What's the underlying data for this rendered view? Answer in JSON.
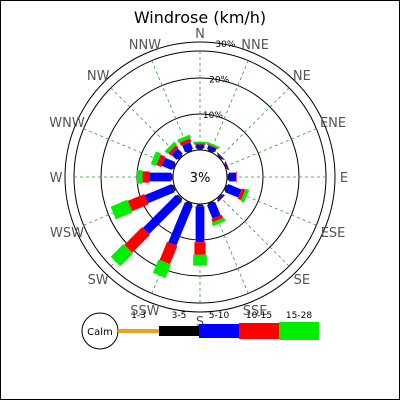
{
  "chart_data": {
    "type": "windrose",
    "title": "Windrose (km/h)",
    "unit": "%",
    "directions": [
      "N",
      "NNE",
      "NE",
      "ENE",
      "E",
      "ESE",
      "SE",
      "SSE",
      "S",
      "SSW",
      "SW",
      "WSW",
      "W",
      "WNW",
      "NW",
      "NNW"
    ],
    "rings": [
      10,
      20,
      30
    ],
    "ring_labels": [
      "10%",
      "20%",
      "30%"
    ],
    "calm_percent": 3,
    "center_label": "3%",
    "calm_label": "Calm",
    "speed_bins": [
      {
        "label": "1-3",
        "color": "#f0a020"
      },
      {
        "label": "3-5",
        "color": "#000000"
      },
      {
        "label": "5-10",
        "color": "#0000ff"
      },
      {
        "label": "10-15",
        "color": "#ff0000"
      },
      {
        "label": "15-28",
        "color": "#00ee00"
      }
    ],
    "series": [
      {
        "direction": "N",
        "values": [
          0.2,
          0.3,
          1.0,
          0.3,
          0.5
        ]
      },
      {
        "direction": "NNE",
        "values": [
          0.2,
          0.3,
          1.0,
          0.3,
          0.5
        ]
      },
      {
        "direction": "NE",
        "values": [
          0.2,
          0.2,
          0.3,
          0.1,
          0.0
        ]
      },
      {
        "direction": "ENE",
        "values": [
          0.2,
          0.2,
          0.3,
          0.1,
          0.0
        ]
      },
      {
        "direction": "E",
        "values": [
          0.2,
          0.3,
          2.0,
          0.2,
          0.0
        ]
      },
      {
        "direction": "ESE",
        "values": [
          0.2,
          0.3,
          4.0,
          1.0,
          1.0
        ]
      },
      {
        "direction": "SE",
        "values": [
          0.2,
          0.2,
          0.5,
          0.1,
          0.0
        ]
      },
      {
        "direction": "SSE",
        "values": [
          0.2,
          0.3,
          4.0,
          1.0,
          1.0
        ]
      },
      {
        "direction": "S",
        "values": [
          0.2,
          0.4,
          10.0,
          3.5,
          3.0
        ]
      },
      {
        "direction": "SSW",
        "values": [
          0.2,
          0.4,
          12.0,
          5.5,
          4.0
        ]
      },
      {
        "direction": "SW",
        "values": [
          0.3,
          0.4,
          13.0,
          7.0,
          5.0
        ]
      },
      {
        "direction": "WSW",
        "values": [
          0.2,
          0.4,
          8.0,
          5.0,
          5.0
        ]
      },
      {
        "direction": "W",
        "values": [
          0.2,
          0.3,
          6.0,
          2.0,
          1.5
        ]
      },
      {
        "direction": "WNW",
        "values": [
          0.2,
          0.3,
          3.0,
          1.5,
          1.5
        ]
      },
      {
        "direction": "NW",
        "values": [
          0.2,
          0.3,
          2.0,
          1.0,
          1.0
        ]
      },
      {
        "direction": "NNW",
        "values": [
          0.2,
          0.3,
          2.0,
          1.0,
          1.0
        ]
      }
    ]
  }
}
